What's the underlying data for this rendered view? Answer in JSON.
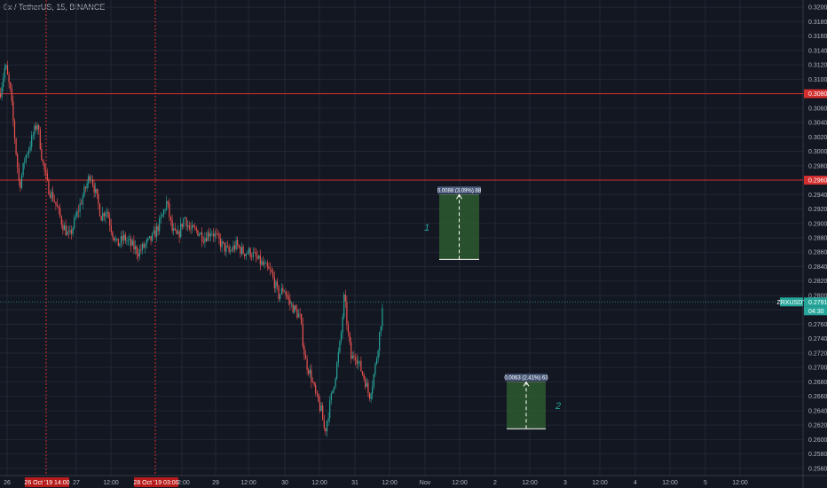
{
  "header": {
    "title": "0x / TetherUS, 15, BINANCE"
  },
  "colors": {
    "background": "#131722",
    "grid": "#232735",
    "up": "#26a69a",
    "down": "#ef5350",
    "red_line": "#d32f2f",
    "zone_fill": "#2e5a2e",
    "current_price": "#26a69a"
  },
  "chart_data": {
    "type": "candlestick",
    "title": "0x / TetherUS, 15, BINANCE",
    "ylim": [
      0.255,
      0.321
    ],
    "xlim": [
      0,
      925
    ],
    "price_ticks": [
      "0.3200",
      "0.3180",
      "0.3160",
      "0.3140",
      "0.3120",
      "0.3100",
      "0.3080",
      "0.3060",
      "0.3040",
      "0.3020",
      "0.3000",
      "0.2980",
      "0.2960",
      "0.2940",
      "0.2920",
      "0.2900",
      "0.2880",
      "0.2860",
      "0.2840",
      "0.2820",
      "0.2800",
      "0.2780",
      "0.2760",
      "0.2740",
      "0.2720",
      "0.2700",
      "0.2680",
      "0.2660",
      "0.2640",
      "0.2620",
      "0.2600",
      "0.2580",
      "0.2560"
    ],
    "time_ticks": [
      {
        "x": 8,
        "label": "26"
      },
      {
        "x": 86,
        "label": "27"
      },
      {
        "x": 125,
        "label": "12:00"
      },
      {
        "x": 205,
        "label": "12:00"
      },
      {
        "x": 243,
        "label": "29"
      },
      {
        "x": 280,
        "label": "12:00"
      },
      {
        "x": 321,
        "label": "30"
      },
      {
        "x": 360,
        "label": "12:00"
      },
      {
        "x": 400,
        "label": "31"
      },
      {
        "x": 439,
        "label": "12:00"
      },
      {
        "x": 479,
        "label": "Nov"
      },
      {
        "x": 518,
        "label": "12:00"
      },
      {
        "x": 558,
        "label": "2"
      },
      {
        "x": 597,
        "label": "12:00"
      },
      {
        "x": 637,
        "label": "3"
      },
      {
        "x": 676,
        "label": "12:00"
      },
      {
        "x": 716,
        "label": "4"
      },
      {
        "x": 755,
        "label": "12:00"
      },
      {
        "x": 795,
        "label": "5"
      },
      {
        "x": 834,
        "label": "12:00"
      }
    ],
    "highlighted_times": [
      {
        "x": 52,
        "label": "26 Oct '19   14:00"
      },
      {
        "x": 175,
        "label": "28 Oct '19   03:00"
      }
    ],
    "horizontal_lines": [
      {
        "price": 0.308,
        "label": "0.3080"
      },
      {
        "price": 0.296,
        "label": "0.2960"
      }
    ],
    "current_price": {
      "price": 0.2791,
      "value": "0.2791",
      "countdown": "04:30",
      "symbol": "ZRXUSDT"
    },
    "path": [
      [
        0,
        0.308
      ],
      [
        6,
        0.312
      ],
      [
        12,
        0.308
      ],
      [
        18,
        0.3
      ],
      [
        22,
        0.295
      ],
      [
        28,
        0.299
      ],
      [
        34,
        0.301
      ],
      [
        42,
        0.304
      ],
      [
        48,
        0.2985
      ],
      [
        54,
        0.295
      ],
      [
        62,
        0.293
      ],
      [
        70,
        0.29
      ],
      [
        78,
        0.288
      ],
      [
        86,
        0.291
      ],
      [
        94,
        0.294
      ],
      [
        102,
        0.297
      ],
      [
        108,
        0.294
      ],
      [
        114,
        0.291
      ],
      [
        120,
        0.292
      ],
      [
        126,
        0.289
      ],
      [
        132,
        0.287
      ],
      [
        140,
        0.288
      ],
      [
        148,
        0.287
      ],
      [
        156,
        0.286
      ],
      [
        164,
        0.287
      ],
      [
        172,
        0.288
      ],
      [
        180,
        0.29
      ],
      [
        188,
        0.293
      ],
      [
        194,
        0.289
      ],
      [
        200,
        0.288
      ],
      [
        208,
        0.291
      ],
      [
        214,
        0.289
      ],
      [
        222,
        0.289
      ],
      [
        230,
        0.288
      ],
      [
        238,
        0.289
      ],
      [
        244,
        0.288
      ],
      [
        250,
        0.287
      ],
      [
        258,
        0.286
      ],
      [
        266,
        0.287
      ],
      [
        274,
        0.286
      ],
      [
        282,
        0.286
      ],
      [
        290,
        0.285
      ],
      [
        298,
        0.284
      ],
      [
        306,
        0.283
      ],
      [
        314,
        0.28
      ],
      [
        320,
        0.281
      ],
      [
        326,
        0.279
      ],
      [
        332,
        0.278
      ],
      [
        338,
        0.277
      ],
      [
        344,
        0.271
      ],
      [
        350,
        0.269
      ],
      [
        356,
        0.266
      ],
      [
        362,
        0.264
      ],
      [
        366,
        0.261
      ],
      [
        372,
        0.265
      ],
      [
        378,
        0.269
      ],
      [
        384,
        0.274
      ],
      [
        388,
        0.28
      ],
      [
        392,
        0.275
      ],
      [
        396,
        0.271
      ],
      [
        400,
        0.272
      ],
      [
        406,
        0.27
      ],
      [
        412,
        0.268
      ],
      [
        416,
        0.266
      ],
      [
        420,
        0.268
      ],
      [
        424,
        0.271
      ],
      [
        428,
        0.275
      ],
      [
        432,
        0.2791
      ]
    ],
    "measures": [
      {
        "label": "1",
        "x1": 495,
        "x2": 540,
        "price_low": 0.285,
        "price_high": 0.294,
        "text": "0.0088 (3.09%) 88"
      },
      {
        "label": "2",
        "x1": 571,
        "x2": 615,
        "price_low": 0.2615,
        "price_high": 0.268,
        "text": "0.0063 (2.41%) 63"
      }
    ]
  }
}
